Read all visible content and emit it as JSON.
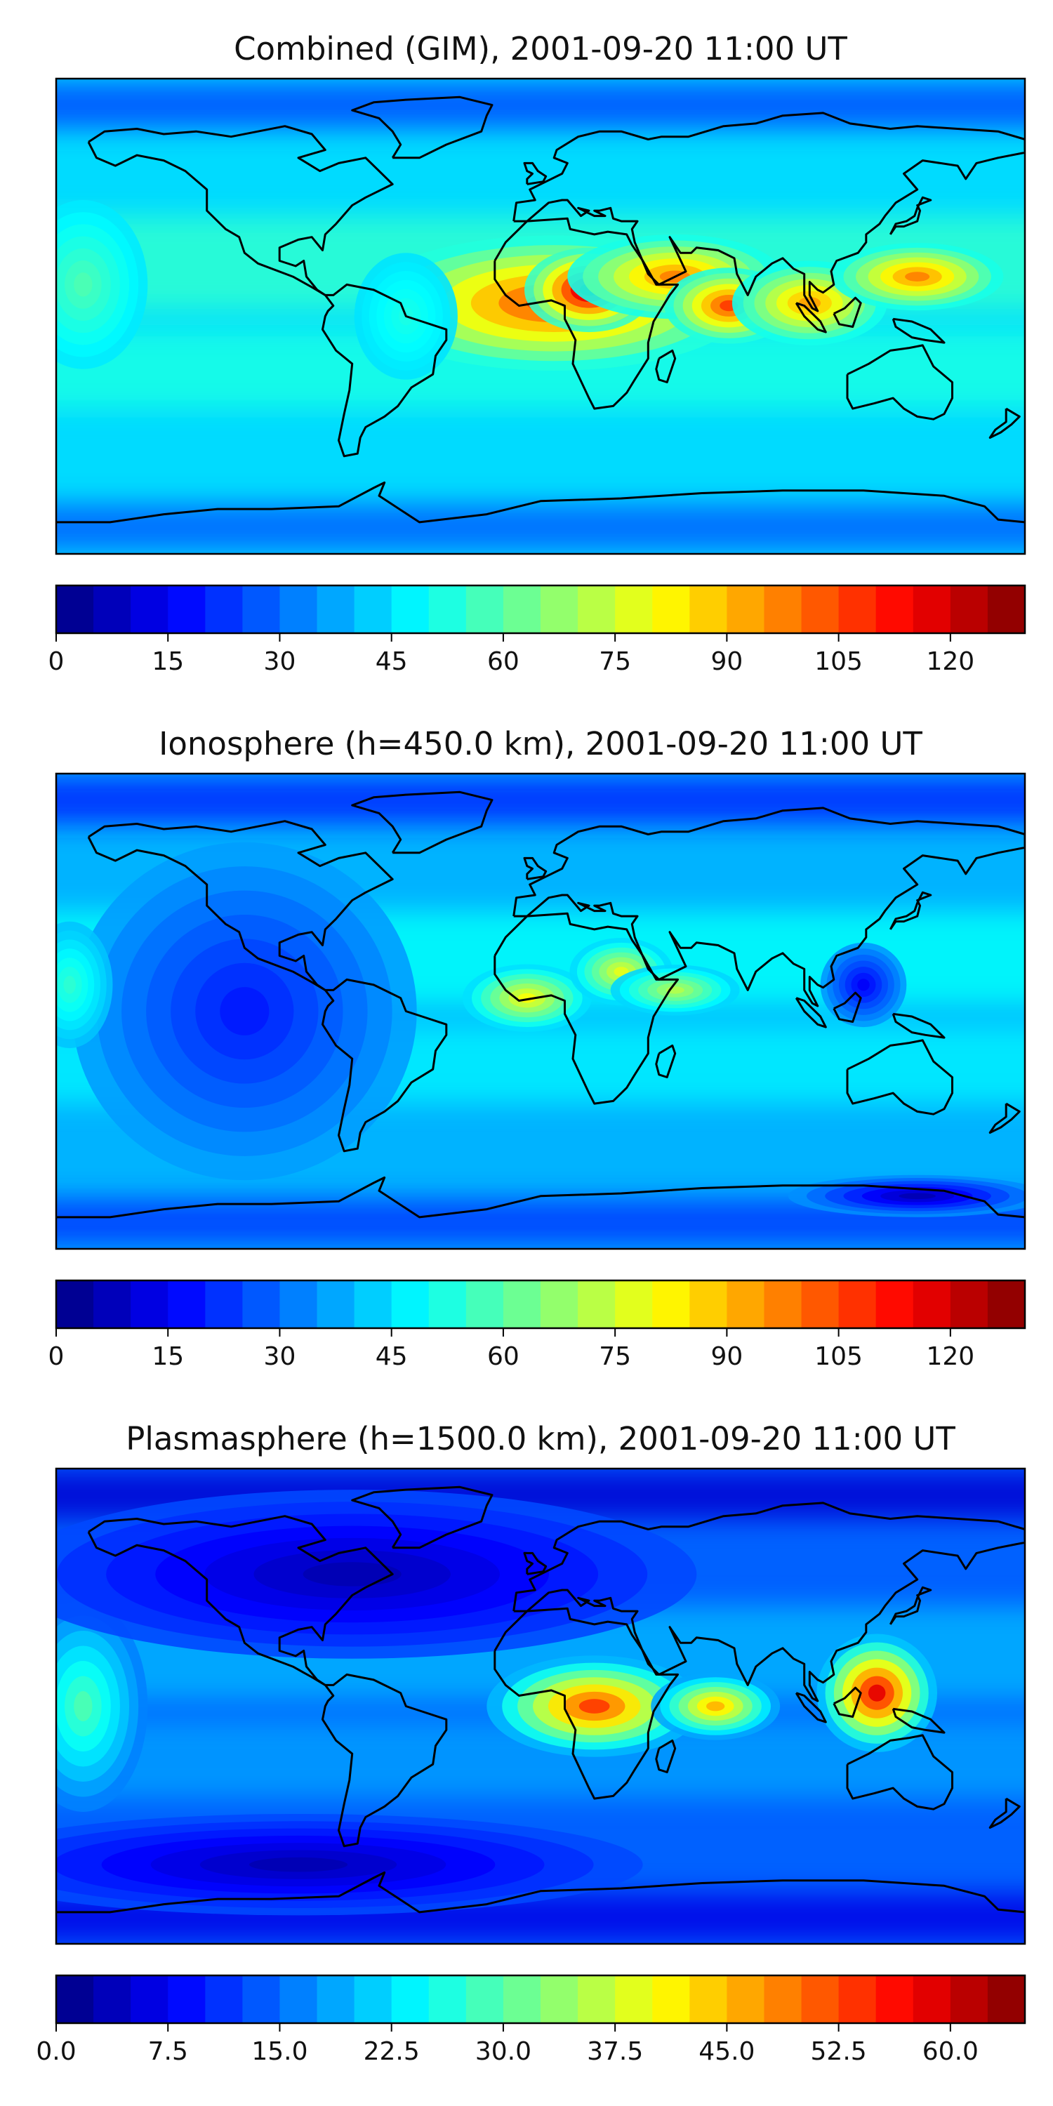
{
  "panels": [
    {
      "title": "Combined (GIM), 2001-09-20 11:00 UT",
      "colorbar": {
        "ticks": [
          "0",
          "15",
          "30",
          "45",
          "60",
          "75",
          "90",
          "105",
          "120"
        ],
        "tick_values": [
          0,
          15,
          30,
          45,
          60,
          75,
          90,
          105,
          120
        ],
        "min": 0,
        "max": 130,
        "levels": 26
      },
      "blobs": [
        {
          "lon": 5,
          "lat": 5,
          "rx": 45,
          "ry": 16,
          "level": 0.82
        },
        {
          "lon": 18,
          "lat": 10,
          "rx": 15,
          "ry": 10,
          "level": 0.98
        },
        {
          "lon": 50,
          "lat": 15,
          "rx": 25,
          "ry": 10,
          "level": 0.75
        },
        {
          "lon": 70,
          "lat": 4,
          "rx": 15,
          "ry": 9,
          "level": 0.82
        },
        {
          "lon": 100,
          "lat": 5,
          "rx": 18,
          "ry": 10,
          "level": 0.72
        },
        {
          "lon": 140,
          "lat": 15,
          "rx": 20,
          "ry": 8,
          "level": 0.75
        },
        {
          "lon": -170,
          "lat": 12,
          "rx": 15,
          "ry": 20,
          "level": 0.45
        },
        {
          "lon": -50,
          "lat": 0,
          "rx": 12,
          "ry": 15,
          "level": 0.4
        }
      ],
      "base": 0.34
    },
    {
      "title": "Ionosphere  (h=450.0 km), 2001-09-20 11:00 UT",
      "colorbar": {
        "ticks": [
          "0",
          "15",
          "30",
          "45",
          "60",
          "75",
          "90",
          "105",
          "120"
        ],
        "tick_values": [
          0,
          15,
          30,
          45,
          60,
          75,
          90,
          105,
          120
        ],
        "min": 0,
        "max": 130,
        "levels": 26
      },
      "blobs": [
        {
          "lon": -5,
          "lat": 5,
          "rx": 15,
          "ry": 8,
          "level": 0.62
        },
        {
          "lon": 30,
          "lat": 15,
          "rx": 12,
          "ry": 8,
          "level": 0.6
        },
        {
          "lon": 50,
          "lat": 8,
          "rx": 15,
          "ry": 6,
          "level": 0.55
        },
        {
          "lon": 120,
          "lat": 10,
          "rx": 10,
          "ry": 10,
          "level": 0.12
        },
        {
          "lon": -110,
          "lat": 0,
          "rx": 40,
          "ry": 40,
          "level": 0.15
        },
        {
          "lon": 140,
          "lat": -70,
          "rx": 30,
          "ry": 5,
          "level": 0.05
        },
        {
          "lon": -175,
          "lat": 10,
          "rx": 10,
          "ry": 15,
          "level": 0.42
        }
      ],
      "base": 0.3
    },
    {
      "title": "Plasmasphere (h=1500.0 km), 2001-09-20 11:00 UT",
      "colorbar": {
        "ticks": [
          "0.0",
          "7.5",
          "15.0",
          "22.5",
          "30.0",
          "37.5",
          "45.0",
          "52.5",
          "60.0"
        ],
        "tick_values": [
          0,
          7.5,
          15,
          22.5,
          30,
          37.5,
          45,
          52.5,
          60
        ],
        "min": 0,
        "max": 65,
        "levels": 26
      },
      "blobs": [
        {
          "lon": 20,
          "lat": 0,
          "rx": 25,
          "ry": 12,
          "level": 0.82
        },
        {
          "lon": 65,
          "lat": 0,
          "rx": 15,
          "ry": 8,
          "level": 0.7
        },
        {
          "lon": 125,
          "lat": 5,
          "rx": 14,
          "ry": 14,
          "level": 0.9
        },
        {
          "lon": -170,
          "lat": 0,
          "rx": 15,
          "ry": 25,
          "level": 0.45
        },
        {
          "lon": -70,
          "lat": 50,
          "rx": 80,
          "ry": 20,
          "level": 0.05
        },
        {
          "lon": -90,
          "lat": -60,
          "rx": 80,
          "ry": 12,
          "level": 0.05
        }
      ],
      "base": 0.22
    }
  ],
  "colors": {
    "frame": "#000000",
    "coast": "#000000",
    "background": "#ffffff",
    "colormap": "jet"
  },
  "map_extent": {
    "lon": [
      -180,
      180
    ],
    "lat": [
      -90,
      90
    ]
  }
}
